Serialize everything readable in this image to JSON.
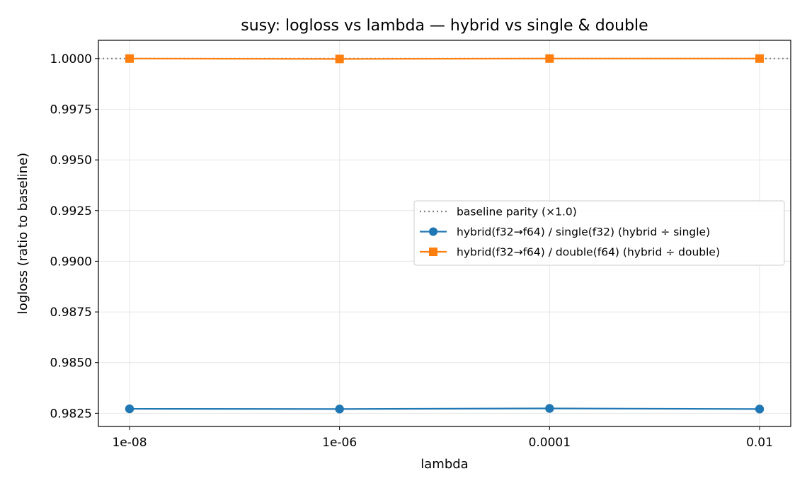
{
  "chart_data": {
    "type": "line",
    "title": "susy: logloss vs lambda — hybrid vs single & double",
    "xlabel": "lambda",
    "ylabel": "logloss (ratio to baseline)",
    "x_scale": "log",
    "categories": [
      "1e-08",
      "1e-06",
      "0.0001",
      "0.01"
    ],
    "x": [
      1e-08,
      1e-06,
      0.0001,
      0.01
    ],
    "ylim": [
      0.98185,
      1.0009
    ],
    "yticks": [
      "0.9825",
      "0.9850",
      "0.9875",
      "0.9900",
      "0.9925",
      "0.9950",
      "0.9975",
      "1.0000"
    ],
    "ytick_values": [
      0.9825,
      0.985,
      0.9875,
      0.99,
      0.9925,
      0.995,
      0.9975,
      1.0
    ],
    "grid": true,
    "legend_position": "center-right",
    "baseline": {
      "name": "baseline parity (×1.0)",
      "value": 1.0,
      "color": "#808080"
    },
    "series": [
      {
        "name": "hybrid(f32→f64) / single(f32)  (hybrid ÷ single)",
        "values": [
          0.98272,
          0.98271,
          0.98274,
          0.98271
        ],
        "color": "#1f77b4",
        "marker": "circle"
      },
      {
        "name": "hybrid(f32→f64) / double(f64)  (hybrid ÷ double)",
        "values": [
          1.0,
          0.99998,
          1.0,
          1.0
        ],
        "color": "#ff7f0e",
        "marker": "square"
      }
    ]
  }
}
